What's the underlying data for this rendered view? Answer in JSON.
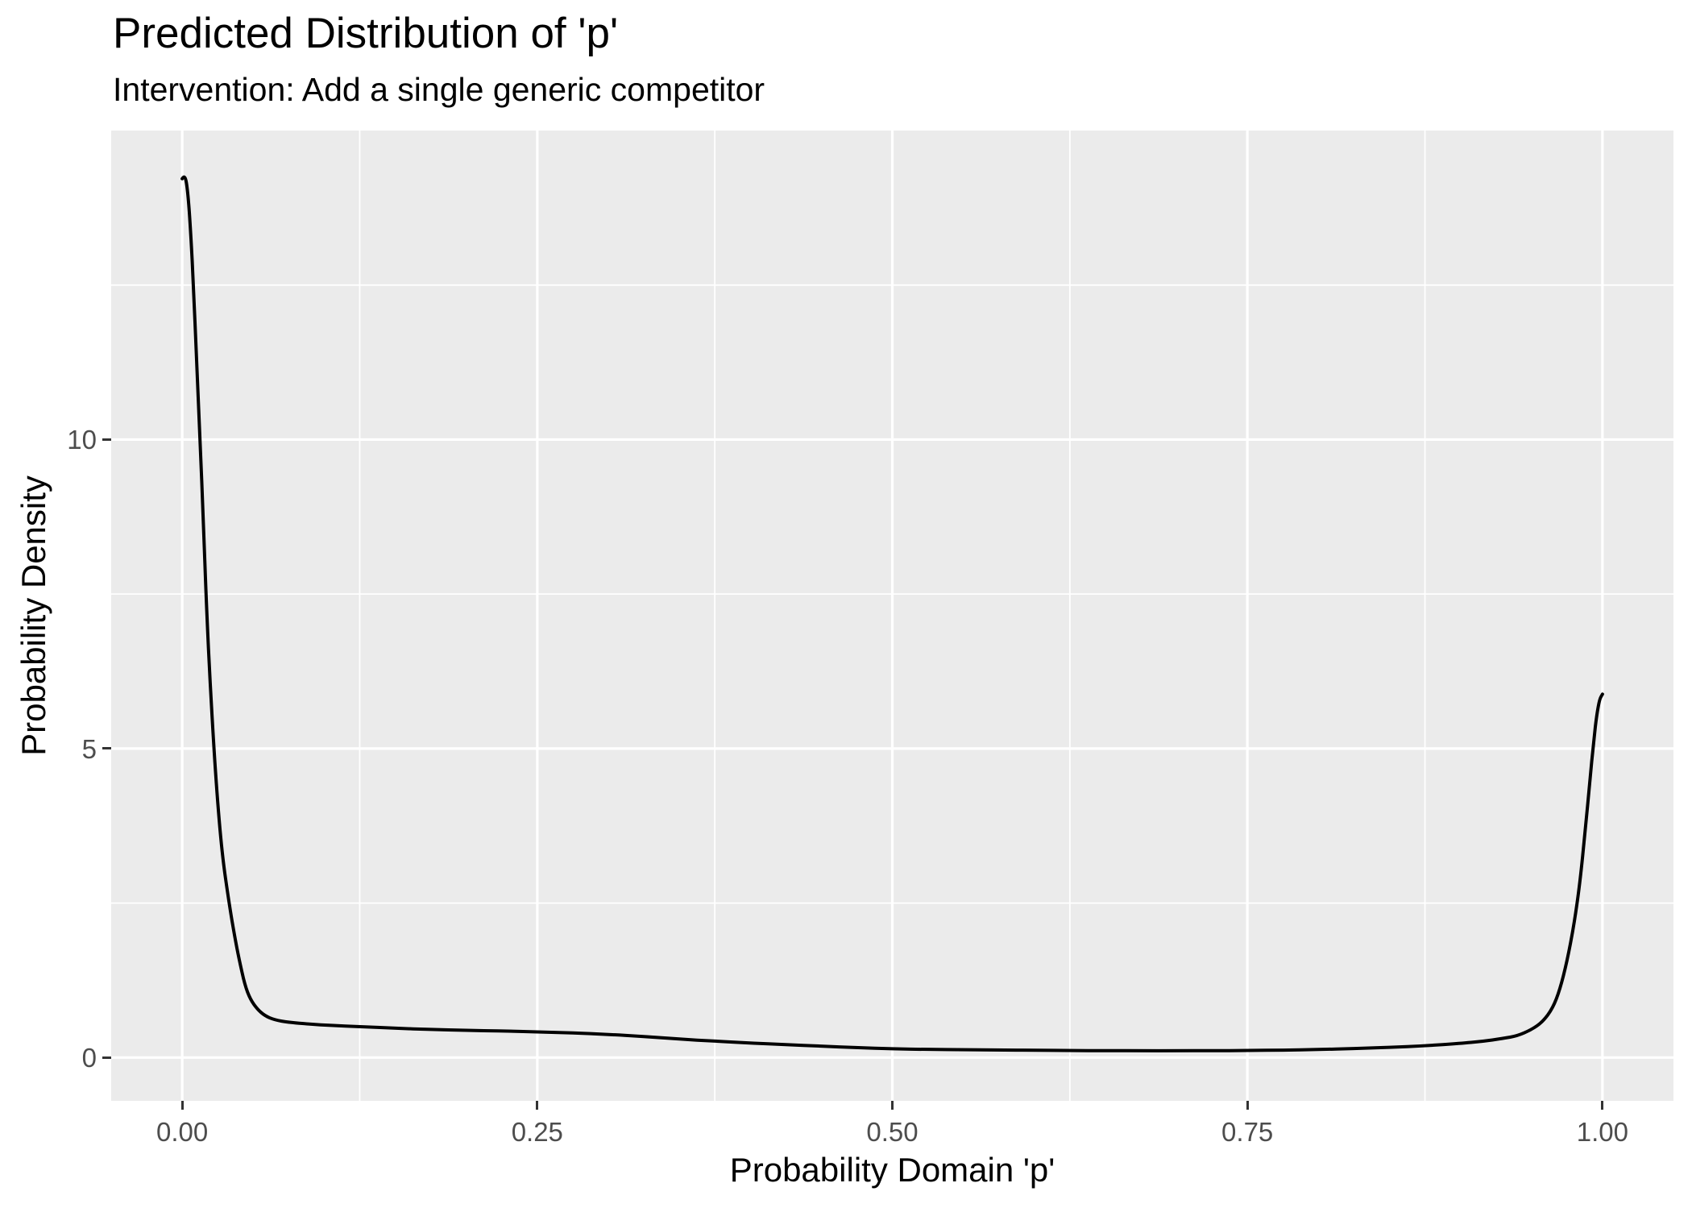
{
  "title": "Predicted Distribution of 'p'",
  "subtitle": "Intervention: Add a single generic competitor",
  "chart_data": {
    "type": "line",
    "title": "Predicted Distribution of 'p'",
    "subtitle": "Intervention: Add a single generic competitor",
    "xlabel": "Probability Domain 'p'",
    "ylabel": "Probability Density",
    "legend": "none",
    "grid": "major+minor",
    "xlim": [
      -0.05,
      1.05
    ],
    "ylim": [
      -0.7,
      15.0
    ],
    "x_ticks": [
      {
        "value": 0.0,
        "label": "0.00"
      },
      {
        "value": 0.25,
        "label": "0.25"
      },
      {
        "value": 0.5,
        "label": "0.50"
      },
      {
        "value": 0.75,
        "label": "0.75"
      },
      {
        "value": 1.0,
        "label": "1.00"
      }
    ],
    "y_ticks": [
      {
        "value": 0,
        "label": "0"
      },
      {
        "value": 5,
        "label": "5"
      },
      {
        "value": 10,
        "label": "10"
      }
    ],
    "x_minor": [
      0.125,
      0.375,
      0.625,
      0.875
    ],
    "y_minor": [
      2.5,
      7.5,
      12.5
    ],
    "x": [
      0.0,
      0.002,
      0.004,
      0.006,
      0.008,
      0.01,
      0.0125,
      0.015,
      0.017,
      0.02,
      0.024,
      0.028,
      0.033,
      0.037,
      0.04,
      0.044,
      0.048,
      0.053,
      0.058,
      0.065,
      0.075,
      0.09,
      0.105,
      0.125,
      0.15,
      0.175,
      0.2,
      0.225,
      0.25,
      0.275,
      0.3,
      0.325,
      0.35,
      0.375,
      0.4,
      0.425,
      0.45,
      0.475,
      0.5,
      0.525,
      0.55,
      0.575,
      0.6,
      0.625,
      0.65,
      0.675,
      0.7,
      0.725,
      0.75,
      0.775,
      0.8,
      0.825,
      0.85,
      0.875,
      0.9,
      0.915,
      0.93,
      0.94,
      0.95,
      0.958,
      0.965,
      0.97,
      0.975,
      0.98,
      0.984,
      0.988,
      0.991,
      0.994,
      0.996,
      0.998,
      1.0
    ],
    "y": [
      14.22,
      14.3,
      14.0,
      13.35,
      12.45,
      11.35,
      10.0,
      8.65,
      7.35,
      5.9,
      4.4,
      3.3,
      2.5,
      1.95,
      1.6,
      1.18,
      0.94,
      0.78,
      0.68,
      0.61,
      0.57,
      0.54,
      0.52,
      0.5,
      0.475,
      0.455,
      0.44,
      0.43,
      0.415,
      0.4,
      0.375,
      0.34,
      0.3,
      0.265,
      0.235,
      0.21,
      0.185,
      0.16,
      0.14,
      0.132,
      0.127,
      0.122,
      0.118,
      0.114,
      0.111,
      0.11,
      0.11,
      0.111,
      0.114,
      0.12,
      0.13,
      0.145,
      0.165,
      0.19,
      0.23,
      0.26,
      0.31,
      0.35,
      0.45,
      0.58,
      0.8,
      1.1,
      1.55,
      2.15,
      2.8,
      3.7,
      4.45,
      5.15,
      5.55,
      5.8,
      5.88
    ],
    "panel_bg": "#EBEBEB",
    "grid_color": "#FFFFFF",
    "line_color": "#000000",
    "axis_text_color": "#4D4D4D",
    "tick_color": "#333333"
  }
}
